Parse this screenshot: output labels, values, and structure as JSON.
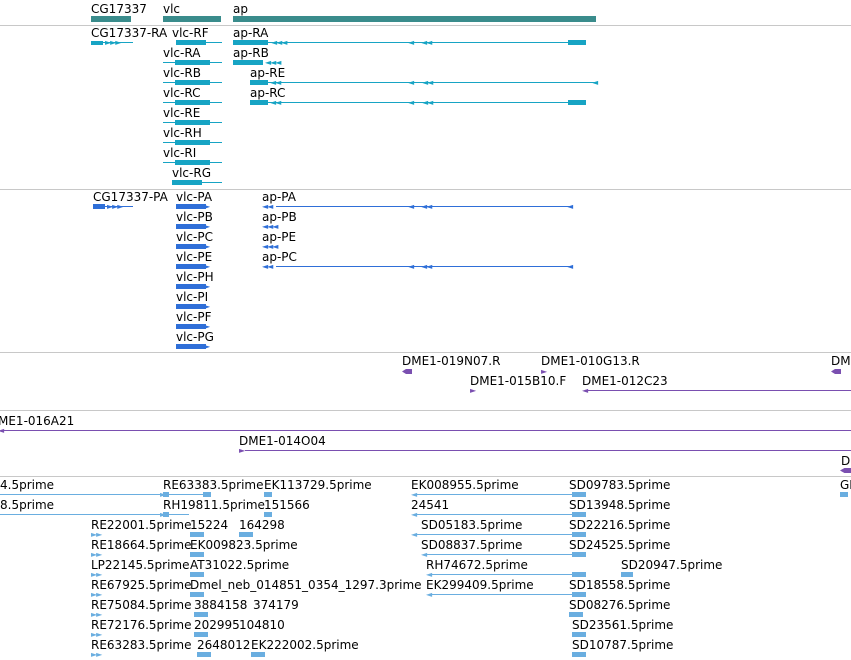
{
  "colors": {
    "gene": "#3a8c8c",
    "transcript": "#17a4c4",
    "protein": "#2f6fd8",
    "clone": "#7a4fb0",
    "est": "#6aaee0",
    "separator": "#c8c8c8"
  },
  "genes": [
    {
      "label": "CG17337"
    },
    {
      "label": "vlc"
    },
    {
      "label": "ap"
    }
  ],
  "transcripts": [
    {
      "label": "CG17337-RA"
    },
    {
      "label": "vlc-RF"
    },
    {
      "label": "ap-RA"
    },
    {
      "label": "vlc-RA"
    },
    {
      "label": "ap-RB"
    },
    {
      "label": "vlc-RB"
    },
    {
      "label": "ap-RE"
    },
    {
      "label": "vlc-RC"
    },
    {
      "label": "ap-RC"
    },
    {
      "label": "vlc-RE"
    },
    {
      "label": "vlc-RH"
    },
    {
      "label": "vlc-RI"
    },
    {
      "label": "vlc-RG"
    }
  ],
  "proteins": [
    {
      "label": "CG17337-PA"
    },
    {
      "label": "vlc-PA"
    },
    {
      "label": "ap-PA"
    },
    {
      "label": "vlc-PB"
    },
    {
      "label": "ap-PB"
    },
    {
      "label": "vlc-PC"
    },
    {
      "label": "ap-PE"
    },
    {
      "label": "vlc-PE"
    },
    {
      "label": "ap-PC"
    },
    {
      "label": "vlc-PH"
    },
    {
      "label": "vlc-PI"
    },
    {
      "label": "vlc-PF"
    },
    {
      "label": "vlc-PG"
    }
  ],
  "clones": [
    {
      "label": "DME1-019N07.R"
    },
    {
      "label": "DME1-010G13.R"
    },
    {
      "label": "DM"
    },
    {
      "label": "DME1-015B10.F"
    },
    {
      "label": "DME1-012C23"
    },
    {
      "label": "ME1-016A21"
    },
    {
      "label": "DME1-014O04"
    },
    {
      "label": "D"
    }
  ],
  "ests": [
    {
      "label": "4.5prime"
    },
    {
      "label": "RE63383.5prime"
    },
    {
      "label": "EK113729.5prime"
    },
    {
      "label": "EK008955.5prime"
    },
    {
      "label": "SD09783.5prime"
    },
    {
      "label": "GI"
    },
    {
      "label": "8.5prime"
    },
    {
      "label": "RH19811.5prime"
    },
    {
      "label": "151566"
    },
    {
      "label": "24541"
    },
    {
      "label": "SD13948.5prime"
    },
    {
      "label": "RE22001.5prime"
    },
    {
      "label": "15224"
    },
    {
      "label": "164298"
    },
    {
      "label": "SD05183.5prime"
    },
    {
      "label": "SD22216.5prime"
    },
    {
      "label": "RE18664.5prime"
    },
    {
      "label": "EK009823.5prime"
    },
    {
      "label": "SD08837.5prime"
    },
    {
      "label": "SD24525.5prime"
    },
    {
      "label": "LP22145.5prime"
    },
    {
      "label": "AT31022.5prime"
    },
    {
      "label": "RH74672.5prime"
    },
    {
      "label": "SD20947.5prime"
    },
    {
      "label": "RE67925.5prime"
    },
    {
      "label": "Dmel_neb_014851_0354_1297.3prime"
    },
    {
      "label": "EK299409.5prime"
    },
    {
      "label": "SD18558.5prime"
    },
    {
      "label": "RE75084.5prime"
    },
    {
      "label": "3884158"
    },
    {
      "label": "374179"
    },
    {
      "label": "SD08276.5prime"
    },
    {
      "label": "RE72176.5prime"
    },
    {
      "label": "202995"
    },
    {
      "label": "104810"
    },
    {
      "label": "SD23561.5prime"
    },
    {
      "label": "RE63283.5prime"
    },
    {
      "label": "2648012"
    },
    {
      "label": "EK222002.5prime"
    },
    {
      "label": "SD10787.5prime"
    }
  ]
}
